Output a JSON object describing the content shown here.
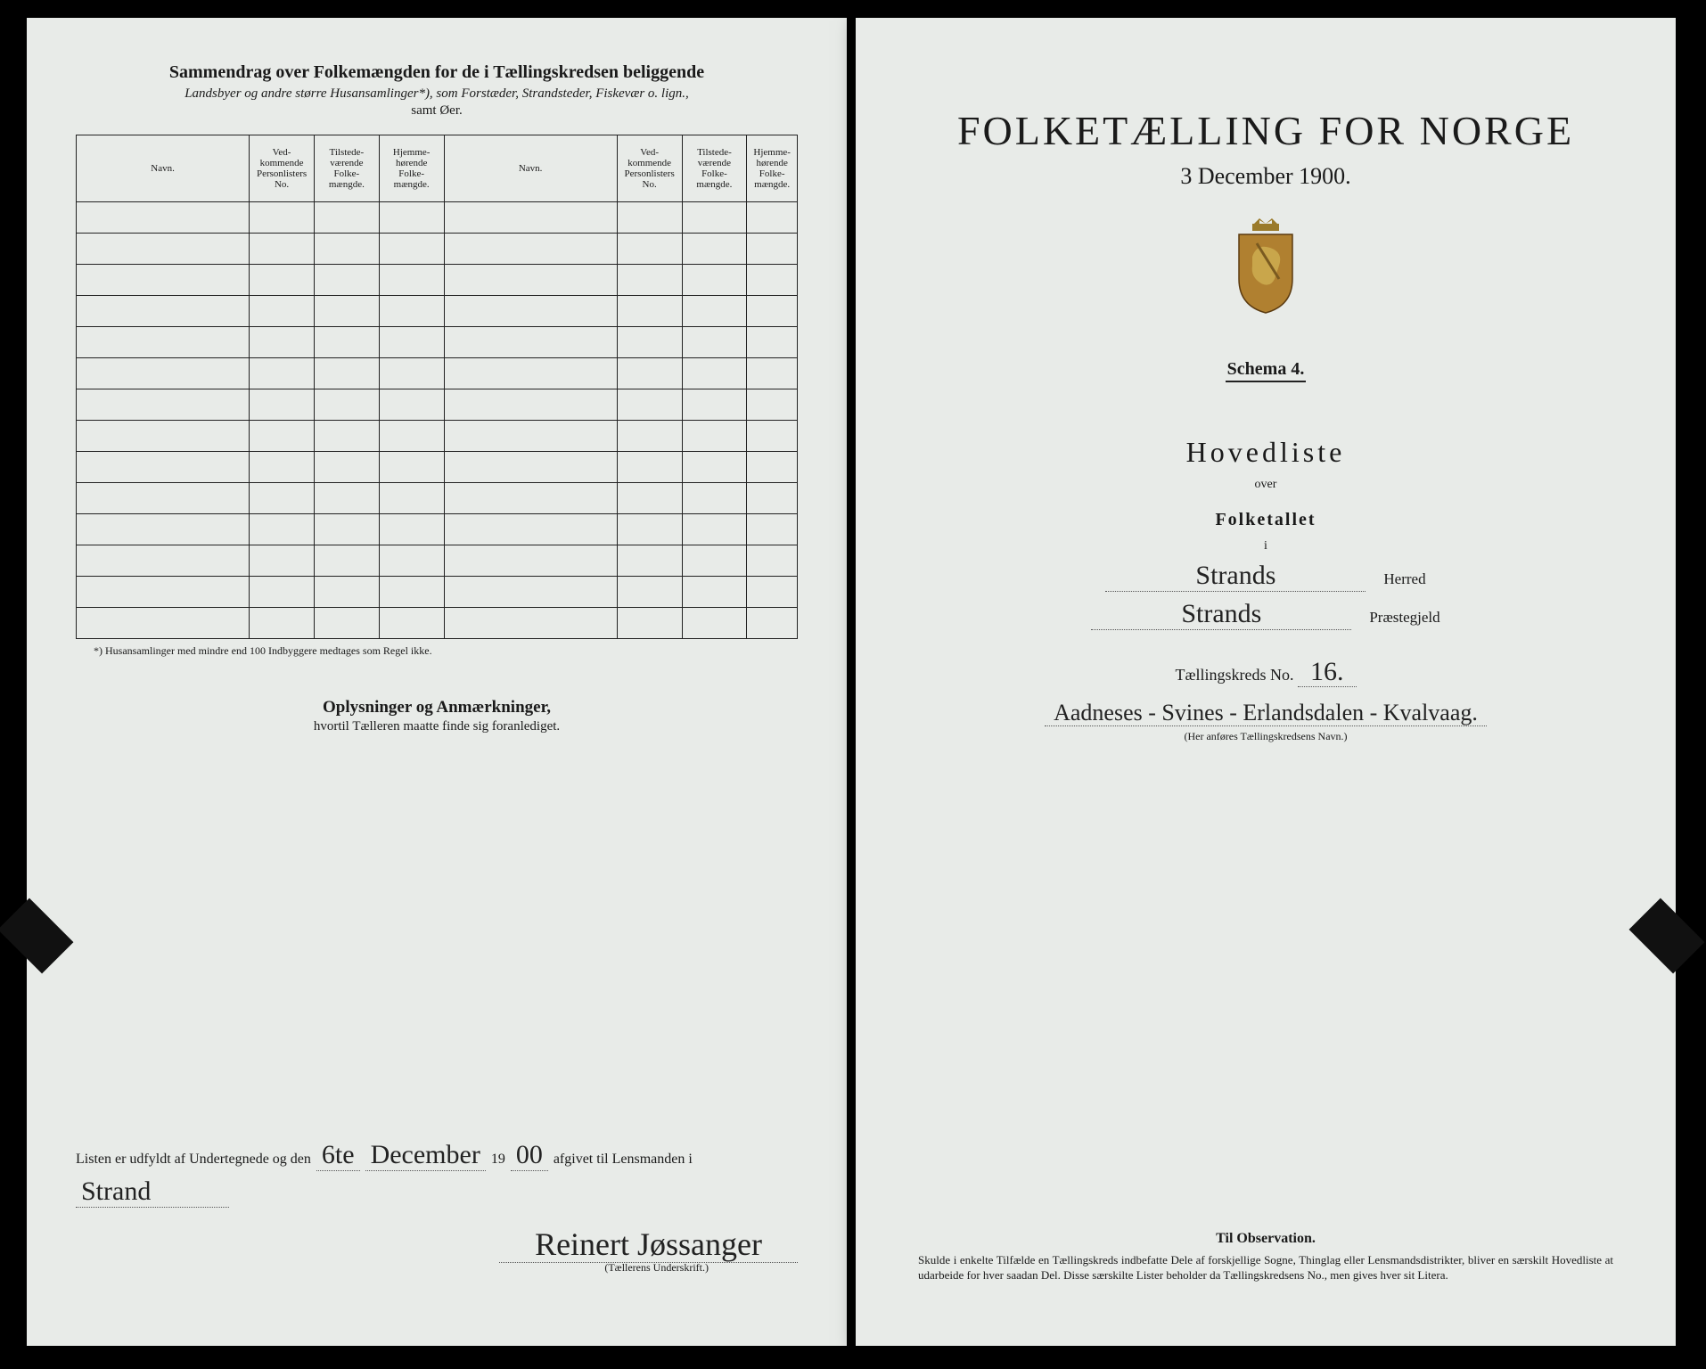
{
  "left": {
    "title": "Sammendrag over Folkemængden for de i Tællingskredsen beliggende",
    "subtitle": "Landsbyer og andre større Husansamlinger*), som Forstæder, Strandsteder, Fiskevær o. lign.,",
    "subtitle2": "samt Øer.",
    "columns": {
      "name": "Navn.",
      "persno": "Ved-\nkommende\nPersonlisters\nNo.",
      "present": "Tilstede-\nværende\nFolke-\nmængde.",
      "resident": "Hjemme-\nhørende\nFolke-\nmængde."
    },
    "footnote": "*) Husansamlinger med mindre end 100 Indbyggere medtages som Regel ikke.",
    "oplys_title": "Oplysninger og Anmærkninger,",
    "oplys_sub": "hvortil Tælleren maatte finde sig foranlediget.",
    "sig_prefix": "Listen er udfyldt af Undertegnede og den",
    "sig_day": "6te",
    "sig_month": "December",
    "sig_year_prefix": "19",
    "sig_year": "00",
    "sig_mid": "afgivet til Lensmanden i",
    "sig_place": "Strand",
    "sig_name": "Reinert Jøssanger",
    "sig_caption": "(Tællerens Underskrift.)"
  },
  "right": {
    "title": "FOLKETÆLLING FOR NORGE",
    "date": "3 December 1900.",
    "schema": "Schema 4.",
    "hovedliste": "Hovedliste",
    "over": "over",
    "folketallet": "Folketallet",
    "i": "i",
    "herred_value": "Strands",
    "herred_label": "Herred",
    "praeste_value": "Strands",
    "praeste_label": "Præstegjeld",
    "kreds_label": "Tællingskreds No.",
    "kreds_no": "16.",
    "kreds_desc": "Aadneses - Svines - Erlandsdalen - Kvalvaag.",
    "kreds_caption": "(Her anføres Tællingskredsens Navn.)",
    "obs_title": "Til Observation.",
    "obs_body": "Skulde i enkelte Tilfælde en Tællingskreds indbefatte Dele af forskjellige Sogne, Thinglag eller Lensmandsdistrikter, bliver en særskilt Hovedliste at udarbeide for hver saadan Del. Disse særskilte Lister beholder da Tællingskredsens No., men gives hver sit Litera.",
    "coat_colors": {
      "shield": "#b08030",
      "crown": "#9a7a2a",
      "lion": "#c9a64b"
    }
  },
  "layout": {
    "table_rows": 14
  }
}
